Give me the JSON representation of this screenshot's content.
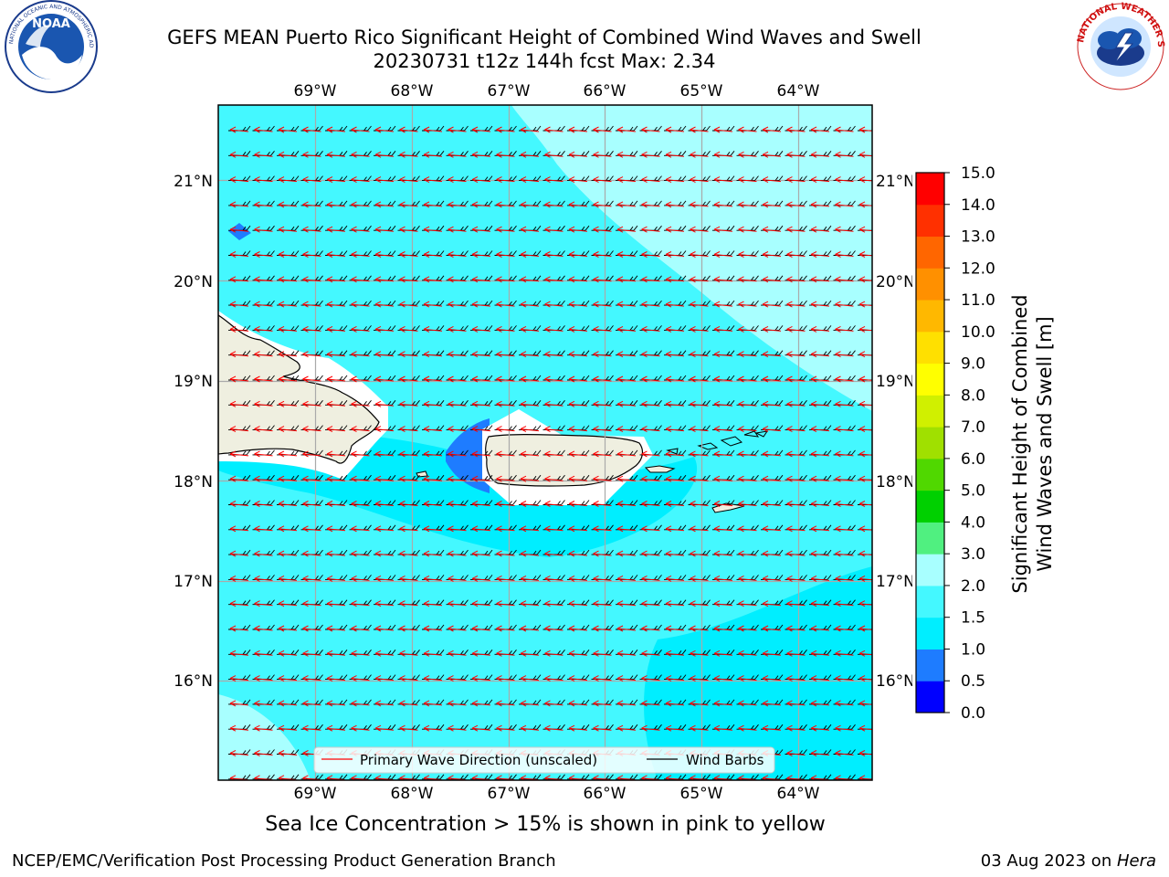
{
  "header": {
    "title_line1": "GEFS MEAN Puerto Rico Significant Height of Combined Wind Waves and Swell",
    "title_line2": "20230731 t12z 144h fcst   Max: 2.34"
  },
  "logos": {
    "noaa_text": "NOAA",
    "noaa_ring_text": "NATIONAL OCEANIC AND ATMOSPHERIC ADMINISTRATION · U.S. DEPARTMENT OF COMMERCE",
    "nws_ring_text": "NATIONAL WEATHER SERVICE"
  },
  "map": {
    "lon_labels": [
      "69°W",
      "68°W",
      "67°W",
      "66°W",
      "65°W",
      "64°W"
    ],
    "lat_labels": [
      "21°N",
      "20°N",
      "19°N",
      "18°N",
      "17°N",
      "16°N"
    ],
    "legend": {
      "wave_direction": "Primary Wave Direction (unscaled)",
      "wind_barbs": "Wind Barbs"
    }
  },
  "colorbar": {
    "label_line1": "Significant Height of Combined",
    "label_line2": "Wind Waves and Swell [m]",
    "ticks": [
      "0.0",
      "0.5",
      "1.0",
      "1.5",
      "2.0",
      "3.0",
      "4.0",
      "5.0",
      "6.0",
      "7.0",
      "8.0",
      "9.0",
      "10.0",
      "11.0",
      "12.0",
      "13.0",
      "14.0",
      "15.0"
    ],
    "colors": [
      "#0000ff",
      "#1e7cff",
      "#00eeff",
      "#44f8ff",
      "#a8ffff",
      "#50f080",
      "#00d000",
      "#50d800",
      "#a0e000",
      "#d0f000",
      "#ffff00",
      "#ffe000",
      "#ffb800",
      "#ff9000",
      "#ff6600",
      "#ff3000",
      "#ff0000"
    ]
  },
  "note": "Sea Ice Concentration > 15% is shown in pink to yellow",
  "footer": {
    "left": "NCEP/EMC/Verification Post Processing Product Generation Branch",
    "right_prefix": "03 Aug 2023 on ",
    "right_machine": "Hera"
  }
}
